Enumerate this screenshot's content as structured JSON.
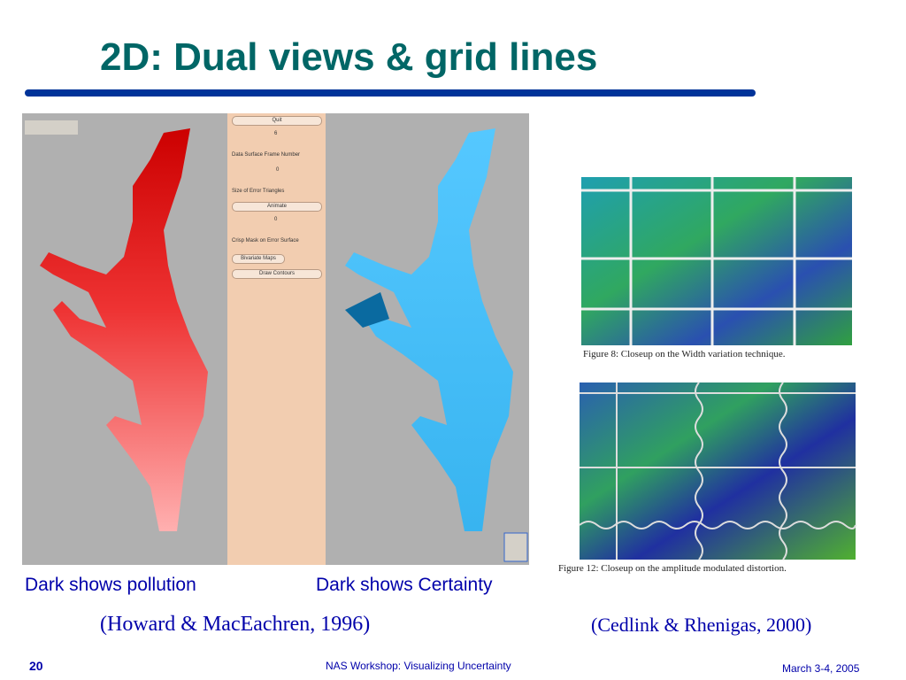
{
  "title": "2D: Dual views & grid lines",
  "left_figure": {
    "panel": {
      "quit": "Quit",
      "frame_value": "6",
      "frame_label": "Data Surface Frame Number",
      "triangle_value": "0",
      "triangle_label": "Size of Error Triangles",
      "animate": "Animate",
      "mask_value": "0",
      "mask_label": "Crisp Mask on Error Surface",
      "bivariate": "Bivariate Maps",
      "contours": "Draw Contours"
    },
    "captions": [
      "Dark shows pollution",
      "Dark shows Certainty"
    ],
    "citation": "(Howard & MacEachren, 1996)"
  },
  "right_figure": {
    "figures": [
      {
        "caption": "Figure 8:  Closeup on the Width variation technique."
      },
      {
        "caption": "Figure 12:  Closeup on the amplitude modulated distortion."
      }
    ],
    "citation": "(Cedlink & Rhenigas, 2000)"
  },
  "footer": {
    "page": "20",
    "center": "NAS Workshop: Visualizing Uncertainty",
    "date": "March 3-4, 2005"
  }
}
